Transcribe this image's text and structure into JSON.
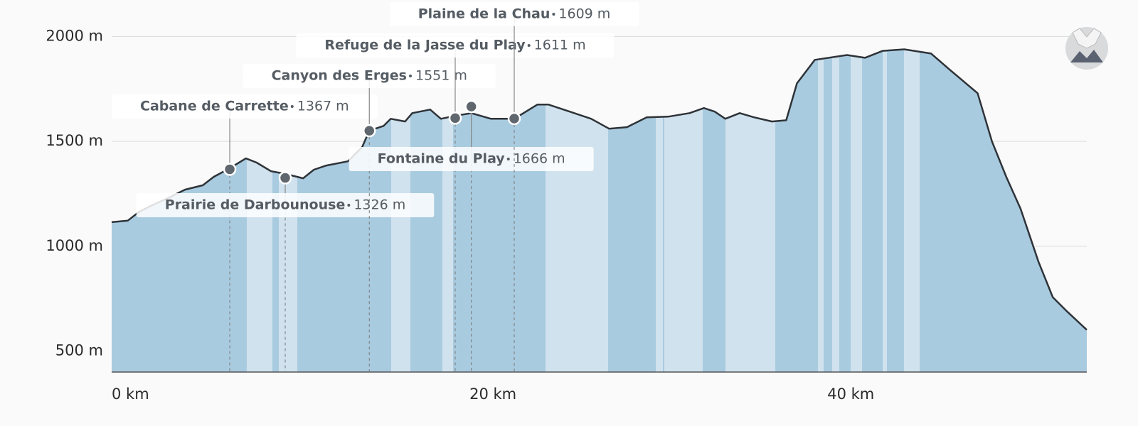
{
  "chart_data": {
    "type": "area",
    "x": [
      0,
      0.9,
      1.5,
      2.1,
      3.3,
      4.1,
      5.1,
      5.7,
      6.6,
      7.5,
      8.1,
      8.9,
      9.7,
      10.7,
      11.3,
      12.0,
      13.2,
      14.0,
      14.4,
      15.2,
      15.6,
      16.4,
      16.8,
      17.8,
      18.4,
      19.2,
      20.1,
      21.2,
      22.5,
      23.8,
      24.4,
      25.6,
      26.8,
      27.8,
      28.8,
      29.9,
      31.1,
      32.3,
      33.1,
      33.7,
      34.3,
      35.1,
      35.9,
      36.9,
      37.7,
      38.3,
      39.3,
      41.1,
      42.1,
      43.1,
      44.3,
      45.8,
      46.8,
      48.4,
      49.2,
      50.0,
      50.8,
      51.8,
      52.6,
      53.4,
      54.5
    ],
    "values": [
      1115,
      1122,
      1162,
      1189,
      1236,
      1270,
      1291,
      1331,
      1372,
      1419,
      1399,
      1358,
      1345,
      1324,
      1365,
      1385,
      1405,
      1473,
      1551,
      1574,
      1608,
      1595,
      1635,
      1652,
      1608,
      1622,
      1635,
      1608,
      1608,
      1676,
      1676,
      1642,
      1608,
      1561,
      1568,
      1615,
      1618,
      1635,
      1659,
      1642,
      1608,
      1635,
      1615,
      1595,
      1601,
      1777,
      1889,
      1912,
      1899,
      1932,
      1939,
      1919,
      1845,
      1730,
      1500,
      1331,
      1179,
      926,
      757,
      689,
      601
    ],
    "color": "#a9cbe0",
    "line_color": "#2e3338",
    "xlim": [
      0,
      54.5
    ],
    "ylim": [
      400,
      2100
    ],
    "xticks": [
      {
        "value": 0,
        "label": "0 km"
      },
      {
        "value": 20,
        "label": "20 km"
      },
      {
        "value": 40,
        "label": "40 km"
      }
    ],
    "yticks": [
      {
        "value": 500,
        "label": "500 m"
      },
      {
        "value": 1000,
        "label": "1000 m"
      },
      {
        "value": 1500,
        "label": "1500 m"
      },
      {
        "value": 2000,
        "label": "2000 m"
      }
    ],
    "grid": true,
    "markers": {
      "names": [
        "Cabane de Carrette",
        "Prairie de Darbounouse",
        "Canyon des Erges",
        "Refuge de la Jasse du Play",
        "Fontaine du Play",
        "Plaine de la Chau"
      ],
      "x": [
        6.6,
        9.7,
        14.4,
        19.2,
        20.1,
        22.5
      ],
      "values": [
        1367,
        1326,
        1551,
        1611,
        1666,
        1609
      ],
      "value_labels": [
        "1367 m",
        "1326 m",
        "1551 m",
        "1611 m",
        "1666 m",
        "1609 m"
      ]
    }
  }
}
